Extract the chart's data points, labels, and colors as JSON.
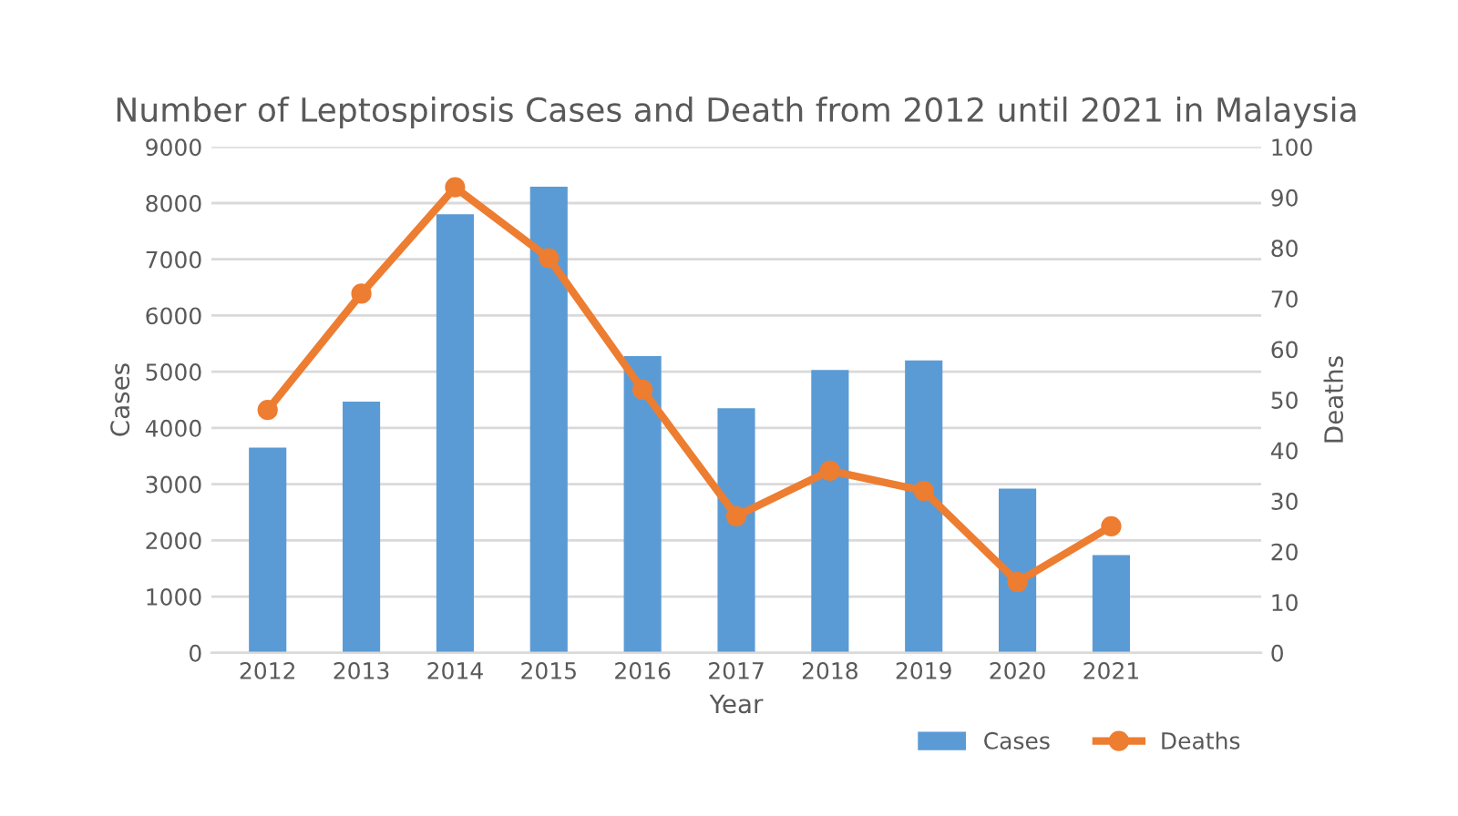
{
  "chart_data": {
    "type": "bar",
    "title": "Number of Leptospirosis Cases and Death from 2012 until 2021 in Malaysia",
    "xlabel": "Year",
    "ylabel": "Cases",
    "y2label": "Deaths",
    "categories": [
      "2012",
      "2013",
      "2014",
      "2015",
      "2016",
      "2017",
      "2018",
      "2019",
      "2020",
      "2021",
      null
    ],
    "series": [
      {
        "name": "Cases",
        "color": "#5b9bd5",
        "values": [
          3650,
          4470,
          7800,
          8290,
          5280,
          4350,
          5030,
          5200,
          2920,
          1740,
          null
        ]
      },
      {
        "name": "Deaths",
        "type": "line",
        "axis": "y2",
        "color": "#ed7d31",
        "marker": "circle",
        "line_style": "solid",
        "values": [
          48,
          71,
          92,
          78,
          52,
          27,
          36,
          32,
          14,
          25,
          null
        ]
      }
    ],
    "ylim": [
      0,
      9000
    ],
    "yticks": [
      0,
      1000,
      2000,
      3000,
      4000,
      5000,
      6000,
      7000,
      8000,
      9000
    ],
    "y2lim": [
      0,
      100
    ],
    "y2ticks": [
      0,
      10,
      20,
      30,
      40,
      50,
      60,
      70,
      80,
      90,
      100
    ],
    "grid": "y",
    "legend": "bottom right"
  }
}
